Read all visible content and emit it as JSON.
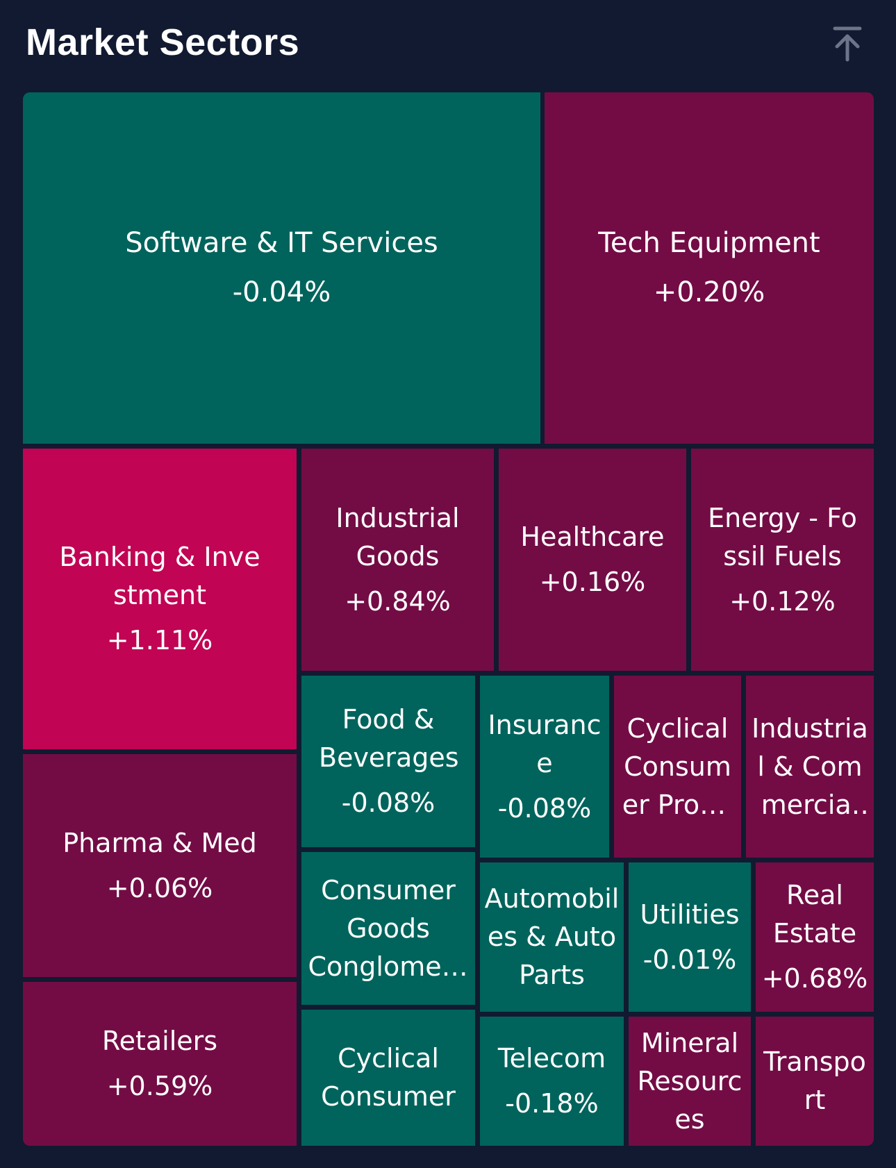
{
  "header": {
    "title": "Market Sectors",
    "scroll_top_icon": "arrow-to-top-icon"
  },
  "colors": {
    "background": "#111a30",
    "negative": "#00645c",
    "positive": "#730c45",
    "strong_positive": "#c10454"
  },
  "sectors": [
    {
      "name": "Software & IT Services",
      "change": "-0.04%"
    },
    {
      "name": "Tech Equipment",
      "change": "+0.20%"
    },
    {
      "name": "Banking & Investment",
      "change": "+1.11%"
    },
    {
      "name": "Industrial Goods",
      "change": "+0.84%"
    },
    {
      "name": "Healthcare",
      "change": "+0.16%"
    },
    {
      "name": "Energy - Fossil Fuels",
      "change": "+0.12%"
    },
    {
      "name": "Food & Beverages",
      "change": "-0.08%"
    },
    {
      "name": "Insurance",
      "change": "-0.08%"
    },
    {
      "name": "Cyclical Consumer Products",
      "change": ""
    },
    {
      "name": "Industrial & Commercial Services",
      "change": ""
    },
    {
      "name": "Pharma & Med",
      "change": "+0.06%"
    },
    {
      "name": "Consumer Goods Conglomerates",
      "change": ""
    },
    {
      "name": "Automobiles & Auto Parts",
      "change": ""
    },
    {
      "name": "Utilities",
      "change": "-0.01%"
    },
    {
      "name": "Real Estate",
      "change": "+0.68%"
    },
    {
      "name": "Retailers",
      "change": "+0.59%"
    },
    {
      "name": "Cyclical Consumer",
      "change": ""
    },
    {
      "name": "Telecom",
      "change": "-0.18%"
    },
    {
      "name": "Mineral Resources",
      "change": ""
    },
    {
      "name": "Transport",
      "change": ""
    }
  ]
}
